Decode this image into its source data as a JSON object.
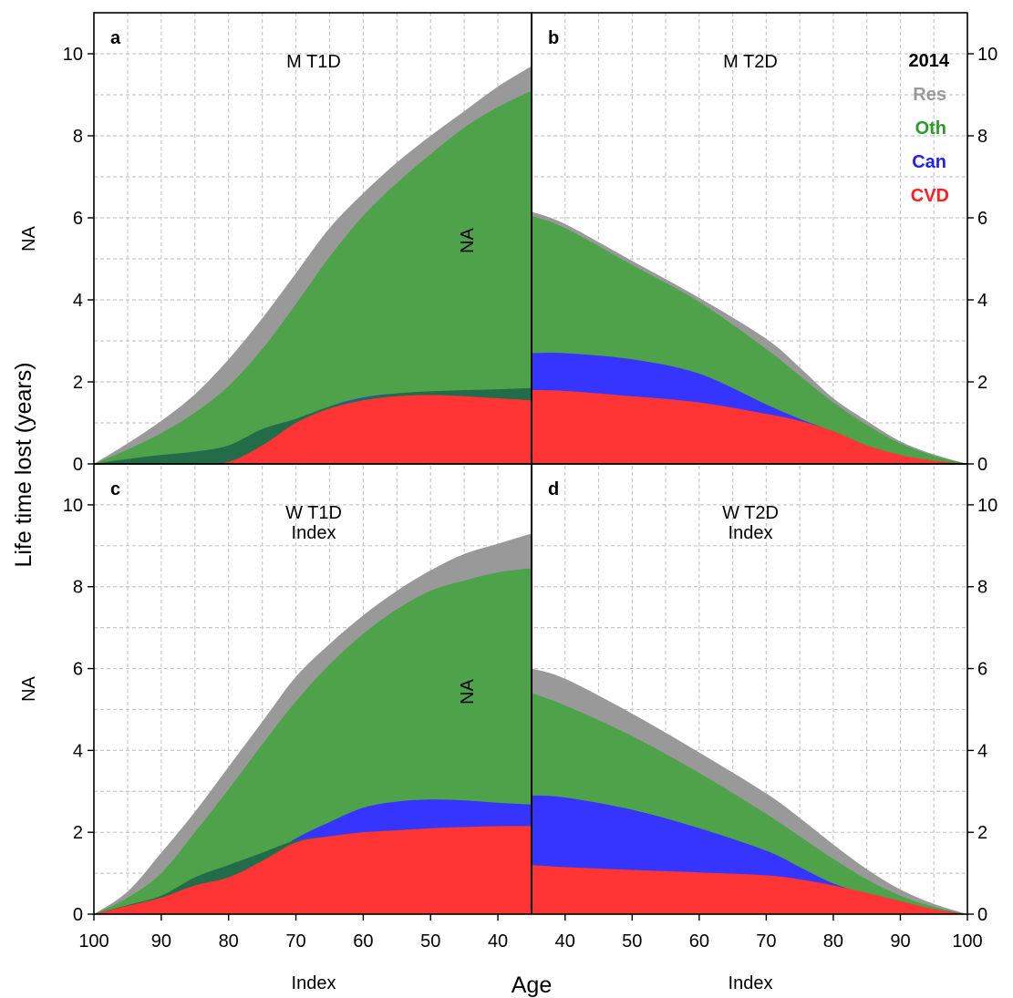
{
  "chart_data": {
    "type": "area",
    "layout": "2x2 stacked-area panels, x axis mirrored",
    "x_label": "Age",
    "y_label": "Life time lost (years)",
    "y_label_side_panels": "NA",
    "x_sublabel": "Index",
    "x_ticks_left": [
      100,
      90,
      80,
      70,
      60,
      50,
      40
    ],
    "x_ticks_right": [
      40,
      50,
      60,
      70,
      80,
      90,
      100
    ],
    "x_range_left": [
      100,
      35
    ],
    "x_range_right": [
      35,
      100
    ],
    "ylim": [
      0,
      11
    ],
    "y_ticks": [
      0,
      2,
      4,
      6,
      8,
      10
    ],
    "grid": true,
    "legend": {
      "title": "2014",
      "position": "top-right",
      "entries": [
        {
          "name": "Res",
          "color": "#999999"
        },
        {
          "name": "Oth",
          "color": "#4ea24a"
        },
        {
          "name": "Can",
          "color": "#3535ff"
        },
        {
          "name": "CVD",
          "color": "#ff3535"
        }
      ]
    },
    "overlap_color": "#236c4a",
    "panels": [
      {
        "id": "a",
        "title": "M T1D",
        "subtitle": "",
        "side": "left",
        "row": 0,
        "inner_ylabel": "NA",
        "ages": [
          100,
          95,
          90,
          85,
          80,
          75,
          70,
          65,
          60,
          55,
          50,
          45,
          40,
          35
        ],
        "cvd": [
          0,
          0,
          0,
          0,
          0.05,
          0.45,
          1.0,
          1.35,
          1.55,
          1.65,
          1.68,
          1.65,
          1.6,
          1.55
        ],
        "can": [
          0,
          0,
          0,
          0,
          0.05,
          0.45,
          1.0,
          1.4,
          1.62,
          1.72,
          1.73,
          1.7,
          1.62,
          1.5
        ],
        "oth": [
          0,
          0.35,
          0.75,
          1.25,
          1.9,
          2.8,
          3.9,
          5.05,
          6.05,
          6.85,
          7.55,
          8.2,
          8.7,
          9.1
        ],
        "total": [
          0,
          0.5,
          1.05,
          1.7,
          2.55,
          3.55,
          4.65,
          5.75,
          6.6,
          7.35,
          8.0,
          8.6,
          9.2,
          9.7
        ],
        "overlap_top": [
          0,
          0.12,
          0.22,
          0.3,
          0.45,
          0.85,
          1.1,
          1.4,
          1.6,
          1.72,
          1.77,
          1.8,
          1.82,
          1.85
        ]
      },
      {
        "id": "b",
        "title": "M T2D",
        "subtitle": "",
        "side": "right",
        "row": 0,
        "inner_ylabel": "",
        "ages": [
          35,
          40,
          50,
          60,
          70,
          75,
          80,
          85,
          90,
          95,
          100
        ],
        "cvd": [
          1.8,
          1.78,
          1.65,
          1.5,
          1.22,
          1.05,
          0.8,
          0.45,
          0.22,
          0.08,
          0
        ],
        "can": [
          2.7,
          2.7,
          2.55,
          2.2,
          1.45,
          1.1,
          0.78,
          0.42,
          0.2,
          0.07,
          0
        ],
        "oth": [
          6.05,
          5.75,
          4.85,
          3.95,
          2.8,
          2.15,
          1.5,
          0.95,
          0.5,
          0.2,
          0
        ],
        "total": [
          6.15,
          5.85,
          4.95,
          4.05,
          3.05,
          2.35,
          1.6,
          1.05,
          0.55,
          0.23,
          0
        ],
        "overlap_top": []
      },
      {
        "id": "c",
        "title": "W T1D",
        "subtitle": "Index",
        "side": "left",
        "row": 1,
        "inner_ylabel": "NA",
        "ages": [
          100,
          95,
          90,
          85,
          80,
          75,
          70,
          65,
          60,
          55,
          50,
          45,
          40,
          35
        ],
        "cvd": [
          0,
          0.2,
          0.4,
          0.7,
          0.9,
          1.3,
          1.75,
          1.9,
          2.0,
          2.05,
          2.1,
          2.13,
          2.15,
          2.15
        ],
        "can": [
          0,
          0.2,
          0.4,
          0.7,
          0.9,
          1.3,
          1.85,
          2.25,
          2.6,
          2.75,
          2.8,
          2.78,
          2.72,
          2.68
        ],
        "oth": [
          0,
          0.4,
          1.0,
          2.0,
          3.05,
          4.15,
          5.2,
          6.1,
          6.85,
          7.45,
          7.9,
          8.15,
          8.35,
          8.45
        ],
        "total": [
          0,
          0.55,
          1.5,
          2.5,
          3.6,
          4.7,
          5.8,
          6.6,
          7.3,
          7.9,
          8.4,
          8.8,
          9.05,
          9.3
        ],
        "overlap_top": [
          0,
          0.22,
          0.45,
          0.9,
          1.2,
          1.5,
          1.8,
          1.9,
          2.0,
          2.05,
          2.1,
          2.13,
          2.15,
          2.15
        ]
      },
      {
        "id": "d",
        "title": "W T2D",
        "subtitle": "Index",
        "side": "right",
        "row": 1,
        "inner_ylabel": "",
        "ages": [
          35,
          40,
          50,
          60,
          70,
          75,
          80,
          85,
          90,
          95,
          100
        ],
        "cvd": [
          1.2,
          1.15,
          1.08,
          1.02,
          0.95,
          0.85,
          0.7,
          0.52,
          0.32,
          0.12,
          0
        ],
        "can": [
          2.9,
          2.85,
          2.55,
          2.1,
          1.55,
          1.15,
          0.75,
          0.5,
          0.3,
          0.12,
          0
        ],
        "oth": [
          5.4,
          5.1,
          4.35,
          3.45,
          2.45,
          1.9,
          1.35,
          0.85,
          0.45,
          0.18,
          0
        ],
        "total": [
          6.0,
          5.75,
          4.9,
          3.95,
          2.95,
          2.35,
          1.7,
          1.1,
          0.6,
          0.25,
          0
        ],
        "overlap_top": []
      }
    ]
  }
}
